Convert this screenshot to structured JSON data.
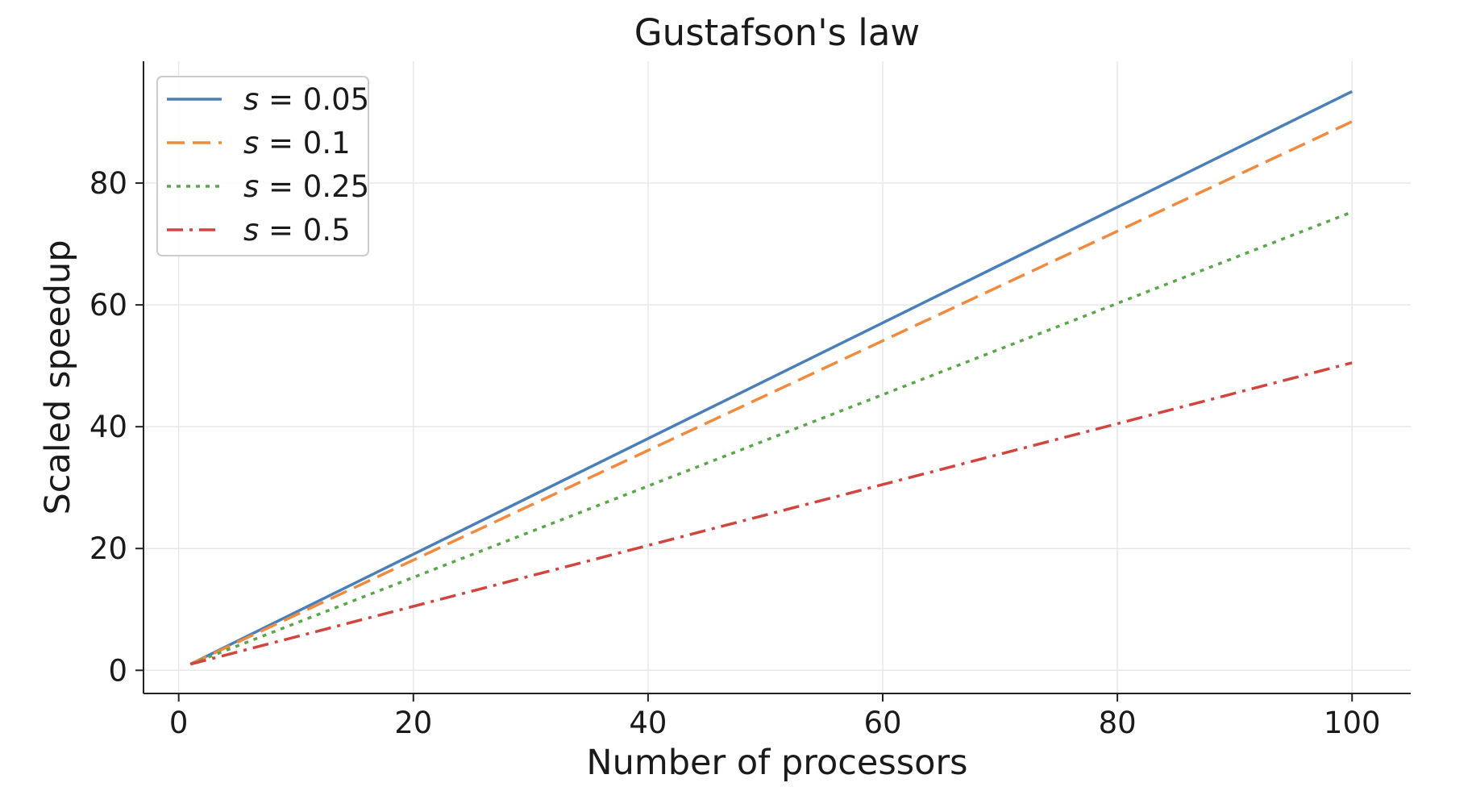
{
  "chart_data": {
    "type": "line",
    "title": "Gustafson's law",
    "xlabel": "Number of processors",
    "ylabel": "Scaled speedup",
    "xlim": [
      -3,
      105
    ],
    "ylim": [
      -3.8,
      100
    ],
    "xticks": [
      0,
      20,
      40,
      60,
      80,
      100
    ],
    "yticks": [
      0,
      20,
      40,
      60,
      80
    ],
    "grid": true,
    "legend_position": "upper-left",
    "x": [
      1,
      100
    ],
    "series": [
      {
        "name": "s = 0.05",
        "var": "s",
        "value_text": "= 0.05",
        "s": 0.05,
        "values": [
          1,
          95.05
        ],
        "color": "#4a7fb8",
        "dash": "solid"
      },
      {
        "name": "s = 0.1",
        "var": "s",
        "value_text": "= 0.1",
        "s": 0.1,
        "values": [
          1,
          90.1
        ],
        "color": "#f08a3e",
        "dash": "dashed"
      },
      {
        "name": "s = 0.25",
        "var": "s",
        "value_text": "= 0.25",
        "s": 0.25,
        "values": [
          1,
          75.25
        ],
        "color": "#5aa64a",
        "dash": "dotted"
      },
      {
        "name": "s = 0.5",
        "var": "s",
        "value_text": "= 0.5",
        "s": 0.5,
        "values": [
          1,
          50.5
        ],
        "color": "#d1453f",
        "dash": "dashdot"
      }
    ]
  }
}
